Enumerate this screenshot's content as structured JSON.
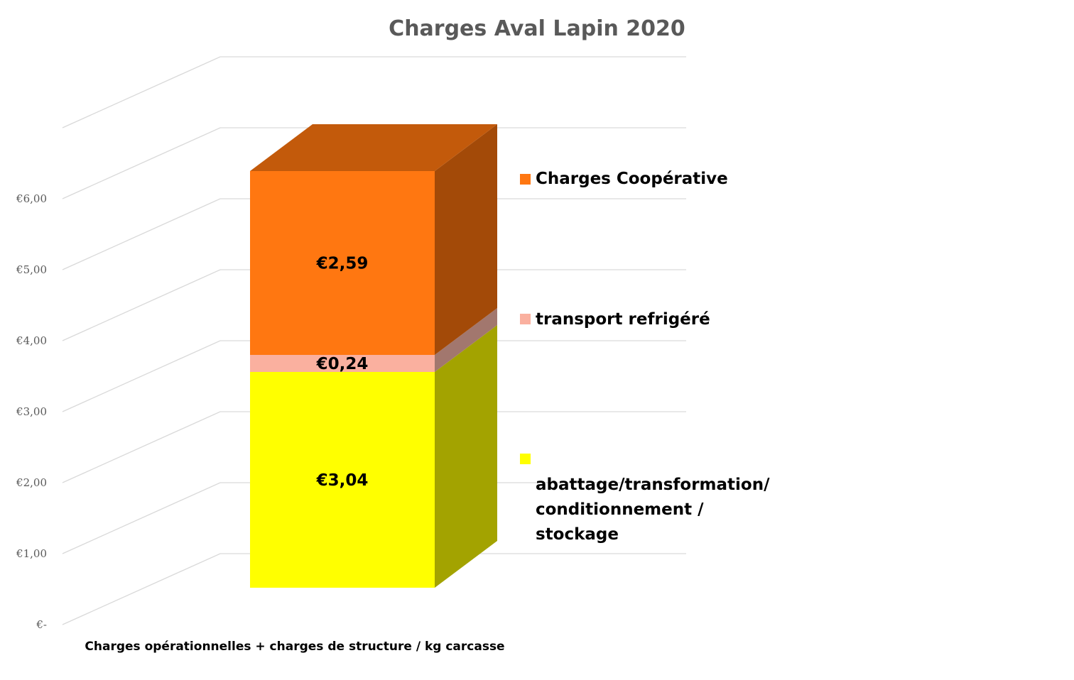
{
  "chart_data": {
    "type": "bar",
    "stacked": true,
    "three_d": true,
    "title": "Charges Aval Lapin 2020",
    "categories": [
      "Charges opérationnelles + charges de structure / kg carcasse"
    ],
    "y_ticks": [
      "€-",
      "€1,00",
      "€2,00",
      "€3,00",
      "€4,00",
      "€5,00",
      "€6,00"
    ],
    "ylim": [
      0,
      7
    ],
    "grid": true,
    "legend_position": "right",
    "series": [
      {
        "name": "abattage/transformation/ conditionnement / stockage",
        "legend_lines": [
          "abattage/transformation/",
          "conditionnement /",
          "stockage"
        ],
        "value": 3.04,
        "label": "€3,04",
        "color": "#FFFF00",
        "side_color": "#A3A300",
        "top_color": "#CCCC00"
      },
      {
        "name": "transport refrigéré",
        "legend_lines": [
          "transport refrigéré"
        ],
        "value": 0.24,
        "label": "€0,24",
        "color": "#FAB09F",
        "side_color": "#A2776E",
        "top_color": "#D9948A"
      },
      {
        "name": "Charges Coopérative",
        "legend_lines": [
          "Charges Coopérative"
        ],
        "value": 2.59,
        "label": "€2,59",
        "color": "#FF7711",
        "side_color": "#A34A08",
        "top_color": "#C35A0B"
      }
    ],
    "legend_order": [
      2,
      1,
      0
    ]
  }
}
